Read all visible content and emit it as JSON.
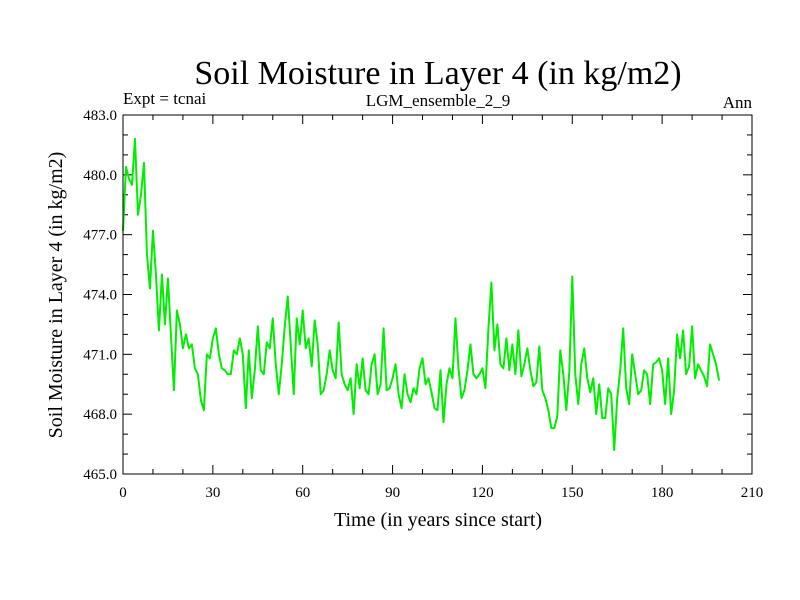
{
  "chart_data": {
    "type": "line",
    "title": "Soil Moisture in Layer 4 (in kg/m2)",
    "subtitle_left": "Expt = tcnai",
    "subtitle_center": "LGM_ensemble_2_9",
    "subtitle_right": "Ann",
    "xlabel": "Time (in years since start)",
    "ylabel": "Soil Moisture in Layer 4 (in kg/m2)",
    "xlim": [
      0,
      210
    ],
    "ylim": [
      465.0,
      483.0
    ],
    "xticks": [
      0,
      30,
      60,
      90,
      120,
      150,
      180,
      210
    ],
    "xtick_labels": [
      "0",
      "30",
      "60",
      "90",
      "120",
      "150",
      "180",
      "210"
    ],
    "yticks": [
      465.0,
      468.0,
      471.0,
      474.0,
      477.0,
      480.0,
      483.0
    ],
    "ytick_labels": [
      "465.0",
      "468.0",
      "471.0",
      "474.0",
      "477.0",
      "480.0",
      "483.0"
    ],
    "line_color": "#00ee00",
    "series": [
      {
        "name": "Soil Moisture",
        "x": [
          0,
          1,
          2,
          3,
          4,
          5,
          6,
          7,
          8,
          9,
          10,
          11,
          12,
          13,
          14,
          15,
          16,
          17,
          18,
          19,
          20,
          21,
          22,
          23,
          24,
          25,
          26,
          27,
          28,
          29,
          30,
          31,
          32,
          33,
          34,
          35,
          36,
          37,
          38,
          39,
          40,
          41,
          42,
          43,
          44,
          45,
          46,
          47,
          48,
          49,
          50,
          51,
          52,
          53,
          54,
          55,
          56,
          57,
          58,
          59,
          60,
          61,
          62,
          63,
          64,
          65,
          66,
          67,
          68,
          69,
          70,
          71,
          72,
          73,
          74,
          75,
          76,
          77,
          78,
          79,
          80,
          81,
          82,
          83,
          84,
          85,
          86,
          87,
          88,
          89,
          90,
          91,
          92,
          93,
          94,
          95,
          96,
          97,
          98,
          99,
          100,
          101,
          102,
          103,
          104,
          105,
          106,
          107,
          108,
          109,
          110,
          111,
          112,
          113,
          114,
          115,
          116,
          117,
          118,
          119,
          120,
          121,
          122,
          123,
          124,
          125,
          126,
          127,
          128,
          129,
          130,
          131,
          132,
          133,
          134,
          135,
          136,
          137,
          138,
          139,
          140,
          141,
          142,
          143,
          144,
          145,
          146,
          147,
          148,
          149,
          150,
          151,
          152,
          153,
          154,
          155,
          156,
          157,
          158,
          159,
          160,
          161,
          162,
          163,
          164,
          165,
          166,
          167,
          168,
          169,
          170,
          171,
          172,
          173,
          174,
          175,
          176,
          177,
          178,
          179,
          180,
          181,
          182,
          183,
          184,
          185,
          186,
          187,
          188,
          189,
          190,
          191,
          192,
          193,
          194,
          195,
          196,
          197,
          198,
          199
        ],
        "values": [
          477.2,
          480.4,
          479.8,
          479.5,
          481.8,
          478.0,
          479.0,
          480.6,
          476.0,
          474.3,
          477.2,
          475.0,
          472.2,
          475.0,
          472.5,
          474.8,
          472.0,
          469.2,
          473.2,
          472.5,
          471.3,
          472.0,
          471.3,
          471.5,
          470.3,
          470.0,
          468.7,
          468.2,
          471.0,
          470.8,
          471.8,
          472.3,
          471.0,
          470.3,
          470.2,
          470.0,
          470.0,
          471.2,
          471.0,
          471.8,
          471.0,
          468.3,
          471.2,
          468.8,
          470.2,
          472.4,
          470.2,
          470.0,
          471.6,
          471.3,
          472.8,
          470.5,
          469.0,
          470.5,
          472.4,
          473.9,
          471.5,
          469.0,
          472.8,
          471.5,
          473.2,
          471.3,
          471.8,
          470.4,
          472.7,
          471.5,
          469.0,
          469.2,
          470.0,
          471.2,
          470.2,
          469.8,
          472.6,
          470.0,
          469.5,
          469.2,
          469.8,
          468.0,
          470.5,
          469.3,
          470.8,
          469.2,
          469.0,
          470.5,
          471.0,
          469.0,
          469.5,
          472.3,
          469.2,
          469.3,
          469.8,
          470.5,
          469.0,
          468.3,
          470.0,
          469.0,
          468.6,
          469.3,
          469.0,
          470.3,
          470.8,
          469.5,
          469.8,
          469.1,
          468.3,
          468.2,
          470.2,
          467.6,
          469.5,
          470.3,
          469.8,
          472.8,
          470.3,
          468.8,
          469.2,
          470.2,
          471.5,
          470.0,
          469.8,
          470.0,
          470.3,
          469.3,
          472.3,
          474.6,
          471.2,
          472.5,
          470.5,
          470.3,
          471.8,
          470.2,
          471.5,
          470.0,
          472.2,
          469.9,
          470.5,
          471.3,
          470.2,
          469.4,
          469.6,
          471.4,
          469.2,
          468.8,
          468.2,
          467.3,
          467.3,
          467.9,
          471.2,
          470.0,
          468.2,
          470.1,
          474.9,
          470.0,
          468.5,
          470.5,
          471.3,
          469.8,
          469.1,
          469.8,
          468.0,
          469.5,
          467.8,
          467.8,
          469.3,
          469.0,
          466.2,
          468.8,
          470.2,
          472.3,
          469.3,
          468.5,
          471.0,
          470.0,
          469.0,
          469.2,
          470.2,
          470.0,
          468.5,
          470.5,
          470.6,
          470.8,
          470.2,
          468.5,
          470.8,
          468.0,
          469.2,
          472.0,
          470.8,
          472.2,
          470.0,
          470.4,
          472.4,
          469.8,
          470.5,
          470.2,
          469.9,
          469.4,
          471.5,
          471.0,
          470.5,
          469.7
        ]
      }
    ]
  }
}
